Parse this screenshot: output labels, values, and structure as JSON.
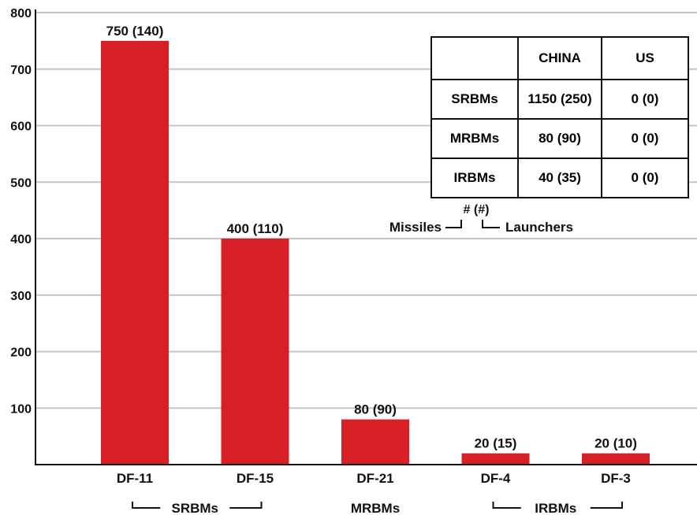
{
  "chart_data": {
    "type": "bar",
    "categories": [
      "DF-11",
      "DF-15",
      "DF-21",
      "DF-4",
      "DF-3"
    ],
    "values": [
      750,
      400,
      80,
      20,
      20
    ],
    "data_labels": [
      "750 (140)",
      "400 (110)",
      "80 (90)",
      "20 (15)",
      "20 (10)"
    ],
    "ylim": [
      0,
      800
    ],
    "yticks": [
      100,
      200,
      300,
      400,
      500,
      600,
      700,
      800
    ],
    "grid": true,
    "bar_color": "#d91f26",
    "groups": [
      {
        "label": "SRBMs",
        "categories": [
          "DF-11",
          "DF-15"
        ]
      },
      {
        "label": "MRBMs",
        "categories": [
          "DF-21"
        ]
      },
      {
        "label": "IRBMs",
        "categories": [
          "DF-4",
          "DF-3"
        ]
      }
    ]
  },
  "table": {
    "headers": [
      "",
      "CHINA",
      "US"
    ],
    "rows": [
      [
        "SRBMs",
        "1150 (250)",
        "0 (0)"
      ],
      [
        "MRBMs",
        "80 (90)",
        "0 (0)"
      ],
      [
        "IRBMs",
        "40 (35)",
        "0 (0)"
      ]
    ]
  },
  "legend": {
    "format": "# (#)",
    "left_label": "Missiles",
    "right_label": "Launchers"
  }
}
